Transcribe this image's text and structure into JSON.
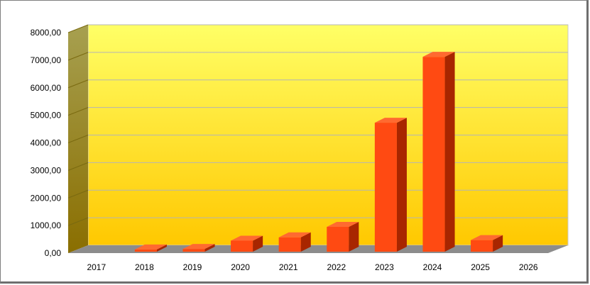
{
  "chart_data": {
    "type": "bar",
    "title": "",
    "xlabel": "",
    "ylabel": "",
    "categories": [
      "2017",
      "2018",
      "2019",
      "2020",
      "2021",
      "2022",
      "2023",
      "2024",
      "2025",
      "2026"
    ],
    "values": [
      0,
      80,
      100,
      400,
      520,
      900,
      4680,
      7070,
      420,
      0
    ],
    "ylim": [
      0,
      8000
    ],
    "yticks": [
      "0,00",
      "1000,00",
      "2000,00",
      "3000,00",
      "4000,00",
      "5000,00",
      "6000,00",
      "7000,00",
      "8000,00"
    ],
    "ytick_values": [
      0,
      1000,
      2000,
      3000,
      4000,
      5000,
      6000,
      7000,
      8000
    ],
    "grid": true,
    "legend": "none",
    "style": "3d-column",
    "colors": {
      "bar_front": "#ff4a12",
      "bar_side": "#a82600",
      "bar_top": "#ff6a30",
      "wall_top": "#ffff66",
      "wall_bottom": "#ffc800",
      "side_wall": "#9a8410",
      "floor": "#8c8c8c",
      "gridline": "#b4b4b4"
    }
  }
}
